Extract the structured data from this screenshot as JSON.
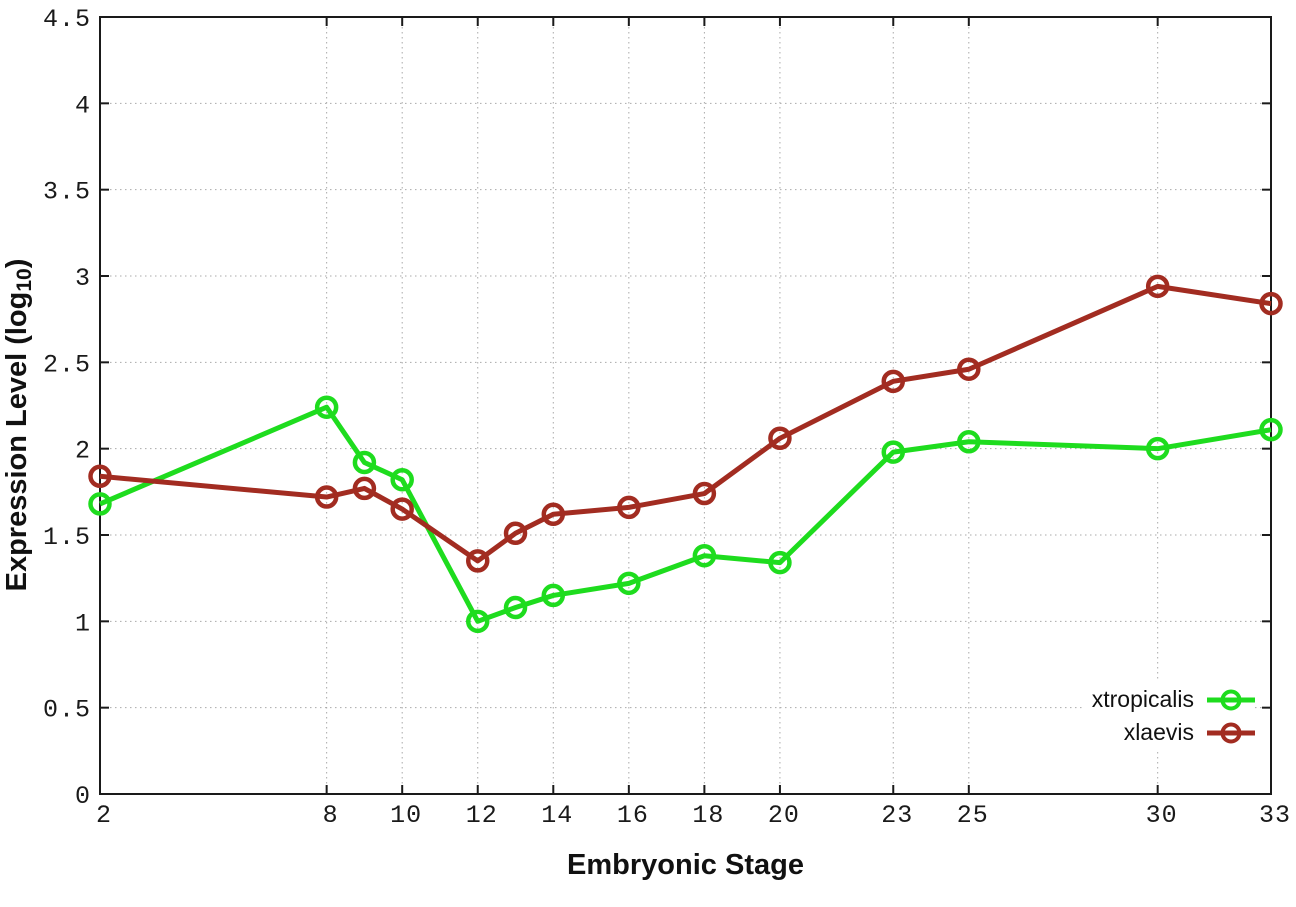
{
  "chart_data": {
    "type": "line",
    "title": "",
    "xlabel": "Embryonic Stage",
    "ylabel": {
      "pre": "Expression Level (log",
      "sub": "10",
      "post": ")"
    },
    "x": [
      2,
      8,
      9,
      10,
      12,
      13,
      14,
      16,
      18,
      20,
      23,
      25,
      30,
      33
    ],
    "xticks": [
      2,
      8,
      10,
      12,
      14,
      16,
      18,
      20,
      23,
      25,
      30,
      33
    ],
    "ylim": [
      0,
      4.5
    ],
    "ytick_step": 0.5,
    "grid": true,
    "grid_style": "dotted",
    "legend_position": "bottom-right",
    "marker": "open-circle",
    "series": [
      {
        "name": "xtropicalis",
        "color": "#1edc1e",
        "values": [
          1.68,
          2.24,
          1.92,
          1.82,
          1.0,
          1.08,
          1.15,
          1.22,
          1.38,
          1.34,
          1.98,
          2.04,
          2.0,
          2.11
        ]
      },
      {
        "name": "xlaevis",
        "color": "#a22c21",
        "values": [
          1.84,
          1.72,
          1.77,
          1.65,
          1.35,
          1.51,
          1.62,
          1.66,
          1.74,
          2.06,
          2.39,
          2.46,
          2.94,
          2.84
        ]
      }
    ]
  },
  "colors": {
    "background": "#ffffff",
    "border": "#1a1a1a",
    "grid": "#a9a9a9",
    "tick_label": "#1a1a1a"
  }
}
